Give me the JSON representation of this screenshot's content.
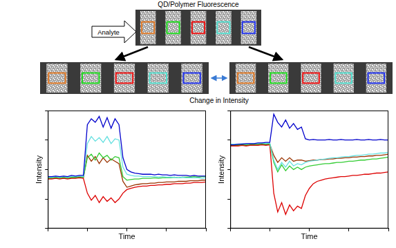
{
  "title": "QD/Polymer Fluorescence",
  "input_label": "Analyte",
  "comparison_label": "Change in Intensity",
  "region_colors": [
    "#e07a28",
    "#22dd22",
    "#ee1111",
    "#55e0d0",
    "#2233ee"
  ],
  "chart_data": [
    {
      "type": "line",
      "x_label": "Time",
      "y_label": "Intensity",
      "xlim": [
        0,
        100
      ],
      "ylim": [
        0,
        100
      ],
      "xticks": [
        0,
        25,
        50,
        75,
        100
      ],
      "yticks": [
        0,
        25,
        50,
        75,
        100
      ],
      "tick_labels": false,
      "grid": false,
      "x": [
        0,
        2.5,
        5,
        7.5,
        10,
        12.5,
        15,
        17.5,
        20,
        22.5,
        25,
        27.5,
        30,
        32.5,
        35,
        37.5,
        40,
        42.5,
        45,
        47.5,
        50,
        52.5,
        55,
        57.5,
        60,
        62.5,
        65,
        67.5,
        70,
        72.5,
        75,
        77.5,
        80,
        82.5,
        85,
        87.5,
        90,
        92.5,
        95,
        97.5,
        100
      ],
      "series": [
        {
          "color": "#0000cc",
          "values": [
            44,
            44,
            44.5,
            44,
            44.5,
            44,
            45,
            44.5,
            45,
            45,
            88,
            93,
            90,
            95,
            86,
            94,
            85,
            93,
            88,
            60,
            50,
            48,
            47,
            46.5,
            46,
            46,
            46,
            45.5,
            46,
            45.5,
            45.5,
            45,
            45.5,
            45,
            45,
            45,
            44.5,
            45,
            44.5,
            44.5,
            44.5
          ]
        },
        {
          "color": "#66e0e0",
          "values": [
            43.5,
            43.5,
            44,
            43.5,
            44,
            43.5,
            44,
            44,
            44.5,
            44,
            72,
            78,
            74,
            77,
            73,
            78,
            72,
            76,
            75,
            52,
            46,
            45,
            44.5,
            44.5,
            44,
            44,
            44,
            44,
            43.5,
            44,
            43.5,
            43.5,
            43.5,
            43,
            43.5,
            43,
            43,
            43,
            43,
            42.5,
            43
          ]
        },
        {
          "color": "#33cc33",
          "values": [
            43,
            43,
            43.5,
            43,
            43.5,
            43,
            43.5,
            43.5,
            44,
            43.5,
            60,
            63,
            58,
            64,
            60,
            62,
            58,
            61,
            60,
            44,
            41,
            41.5,
            42,
            42,
            42.5,
            42.5,
            42.5,
            43,
            42.5,
            43,
            43,
            43,
            43.5,
            43,
            43.5,
            43.5,
            43.5,
            44,
            43.5,
            44,
            44
          ]
        },
        {
          "color": "#993300",
          "values": [
            42.5,
            42.5,
            43,
            42.5,
            43,
            42.5,
            43,
            43,
            43.5,
            43,
            62,
            57,
            61,
            55,
            60,
            56,
            59,
            57,
            55,
            40,
            35,
            36,
            37,
            37.5,
            38,
            38,
            38.5,
            38.5,
            39,
            39,
            39.5,
            39.5,
            39.5,
            40,
            40,
            40,
            40.5,
            40.5,
            40.5,
            41,
            41
          ]
        },
        {
          "color": "#dd0000",
          "values": [
            42,
            42,
            42.5,
            42,
            42.5,
            42,
            42.5,
            42.5,
            43,
            42.5,
            30,
            24,
            28,
            22,
            27,
            23,
            26,
            22,
            25,
            30,
            33,
            34,
            35,
            35.5,
            36,
            36,
            36.5,
            36.5,
            37,
            37,
            37.5,
            37.5,
            38,
            38,
            38,
            38.5,
            38.5,
            39,
            39,
            39,
            39.5
          ]
        }
      ]
    },
    {
      "type": "line",
      "x_label": "Time",
      "y_label": "Intensity",
      "xlim": [
        0,
        100
      ],
      "ylim": [
        0,
        100
      ],
      "xticks": [
        0,
        25,
        50,
        75,
        100
      ],
      "yticks": [
        0,
        25,
        50,
        75,
        100
      ],
      "tick_labels": false,
      "grid": false,
      "x": [
        0,
        2.5,
        5,
        7.5,
        10,
        12.5,
        15,
        17.5,
        20,
        22.5,
        25,
        27.5,
        30,
        32.5,
        35,
        37.5,
        40,
        42.5,
        45,
        47.5,
        50,
        52.5,
        55,
        57.5,
        60,
        62.5,
        65,
        67.5,
        70,
        72.5,
        75,
        77.5,
        80,
        82.5,
        85,
        87.5,
        90,
        92.5,
        95,
        97.5,
        100
      ],
      "series": [
        {
          "color": "#0000cc",
          "values": [
            71,
            71,
            71.5,
            71.5,
            72,
            72,
            72,
            72.5,
            72.5,
            73,
            73,
            97,
            90,
            86,
            92,
            85,
            89,
            84,
            86,
            76,
            75,
            75.5,
            75,
            75,
            75,
            75.5,
            75,
            75,
            75.5,
            75,
            75,
            75,
            75.5,
            75,
            75,
            75.5,
            75,
            75,
            75.5,
            75,
            75
          ]
        },
        {
          "color": "#66e0e0",
          "values": [
            71.5,
            71.5,
            71.5,
            72,
            71.5,
            72,
            72,
            72,
            72.5,
            72,
            72.5,
            58,
            50,
            56,
            52,
            57,
            53,
            55,
            54,
            56,
            57,
            57.5,
            58,
            58.5,
            59,
            59.5,
            60,
            60,
            60.5,
            61,
            61,
            61.5,
            62,
            62,
            62.5,
            63,
            63,
            63.5,
            64,
            64,
            64.5
          ]
        },
        {
          "color": "#33cc33",
          "values": [
            71,
            71,
            71,
            71.5,
            71,
            71.5,
            71.5,
            71.5,
            72,
            71.5,
            72,
            56,
            48,
            54,
            49,
            53,
            50,
            52,
            50,
            52,
            53,
            53.5,
            54,
            54.5,
            55,
            55,
            55.5,
            56,
            56,
            56.5,
            57,
            57,
            57.5,
            58,
            58,
            58.5,
            59,
            59,
            59.5,
            60,
            60.5
          ]
        },
        {
          "color": "#993300",
          "values": [
            70.5,
            70.5,
            70.5,
            71,
            70.5,
            71,
            71,
            71,
            71.5,
            71,
            71.5,
            62,
            56,
            60,
            57,
            60,
            57,
            58,
            58,
            57,
            57.5,
            58,
            58,
            58.5,
            58.5,
            59,
            59,
            59.5,
            59.5,
            60,
            60,
            60.5,
            60.5,
            61,
            61,
            61.5,
            61.5,
            62,
            62,
            62.5,
            63
          ]
        },
        {
          "color": "#dd0000",
          "values": [
            70,
            70,
            70,
            70.5,
            70,
            70.5,
            70.5,
            70.5,
            71,
            70.5,
            71,
            30,
            14,
            22,
            12,
            20,
            15,
            19,
            17,
            28,
            34,
            38,
            40,
            41,
            42,
            42.5,
            43,
            43.5,
            44,
            44,
            44.5,
            45,
            45,
            45.5,
            46,
            46,
            46.5,
            47,
            47,
            47.5,
            48
          ]
        }
      ]
    }
  ]
}
